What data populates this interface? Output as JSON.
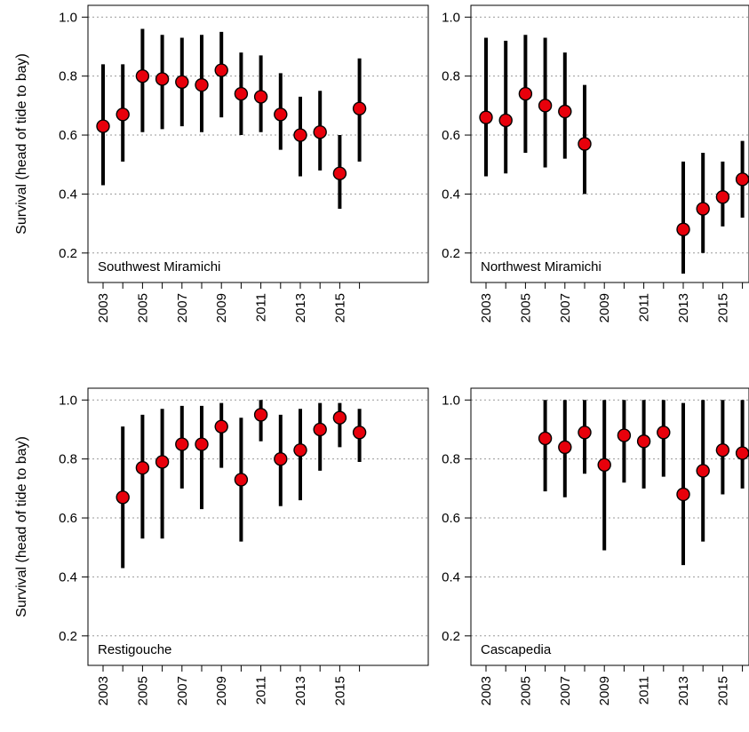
{
  "chart_data": [
    {
      "type": "scatter",
      "subtype": "point-with-error-bars",
      "panel_label": "Southwest Miramichi",
      "ylabel": "Survival (head of tide to bay)",
      "xlabel": "",
      "ylim": [
        0.1,
        1.04
      ],
      "xlim": [
        2002.6,
        2016.4
      ],
      "yticks": [
        "0.2",
        "0.4",
        "0.6",
        "0.8",
        "1.0"
      ],
      "xticks": [
        "2003",
        "2005",
        "2007",
        "2009",
        "2011",
        "2013",
        "2015"
      ],
      "grid": "horizontal dotted",
      "points": [
        {
          "x": 2003,
          "y": 0.63,
          "lo": 0.43,
          "hi": 0.84
        },
        {
          "x": 2004,
          "y": 0.67,
          "lo": 0.51,
          "hi": 0.84
        },
        {
          "x": 2005,
          "y": 0.8,
          "lo": 0.61,
          "hi": 0.96
        },
        {
          "x": 2006,
          "y": 0.79,
          "lo": 0.62,
          "hi": 0.94
        },
        {
          "x": 2007,
          "y": 0.78,
          "lo": 0.63,
          "hi": 0.93
        },
        {
          "x": 2008,
          "y": 0.77,
          "lo": 0.61,
          "hi": 0.94
        },
        {
          "x": 2009,
          "y": 0.82,
          "lo": 0.66,
          "hi": 0.95
        },
        {
          "x": 2010,
          "y": 0.74,
          "lo": 0.6,
          "hi": 0.88
        },
        {
          "x": 2011,
          "y": 0.73,
          "lo": 0.61,
          "hi": 0.87
        },
        {
          "x": 2012,
          "y": 0.67,
          "lo": 0.55,
          "hi": 0.81
        },
        {
          "x": 2013,
          "y": 0.6,
          "lo": 0.46,
          "hi": 0.73
        },
        {
          "x": 2014,
          "y": 0.61,
          "lo": 0.48,
          "hi": 0.75
        },
        {
          "x": 2015,
          "y": 0.47,
          "lo": 0.35,
          "hi": 0.6
        },
        {
          "x": 2016,
          "y": 0.69,
          "lo": 0.51,
          "hi": 0.86
        }
      ]
    },
    {
      "type": "scatter",
      "subtype": "point-with-error-bars",
      "panel_label": "Northwest Miramichi",
      "ylabel": "",
      "xlabel": "",
      "ylim": [
        0.1,
        1.04
      ],
      "xlim": [
        2002.6,
        2016.4
      ],
      "yticks": [
        "0.2",
        "0.4",
        "0.6",
        "0.8",
        "1.0"
      ],
      "xticks": [
        "2003",
        "2005",
        "2007",
        "2009",
        "2011",
        "2013",
        "2015"
      ],
      "grid": "horizontal dotted",
      "points": [
        {
          "x": 2003,
          "y": 0.66,
          "lo": 0.46,
          "hi": 0.93
        },
        {
          "x": 2004,
          "y": 0.65,
          "lo": 0.47,
          "hi": 0.92
        },
        {
          "x": 2005,
          "y": 0.74,
          "lo": 0.54,
          "hi": 0.94
        },
        {
          "x": 2006,
          "y": 0.7,
          "lo": 0.49,
          "hi": 0.93
        },
        {
          "x": 2007,
          "y": 0.68,
          "lo": 0.52,
          "hi": 0.88
        },
        {
          "x": 2008,
          "y": 0.57,
          "lo": 0.4,
          "hi": 0.77
        },
        {
          "x": 2013,
          "y": 0.28,
          "lo": 0.13,
          "hi": 0.51
        },
        {
          "x": 2014,
          "y": 0.35,
          "lo": 0.2,
          "hi": 0.54
        },
        {
          "x": 2015,
          "y": 0.39,
          "lo": 0.29,
          "hi": 0.51
        },
        {
          "x": 2016,
          "y": 0.45,
          "lo": 0.32,
          "hi": 0.58
        }
      ]
    },
    {
      "type": "scatter",
      "subtype": "point-with-error-bars",
      "panel_label": "Restigouche",
      "ylabel": "Survival (head of tide to bay)",
      "xlabel": "",
      "ylim": [
        0.1,
        1.04
      ],
      "xlim": [
        2002.6,
        2016.4
      ],
      "yticks": [
        "0.2",
        "0.4",
        "0.6",
        "0.8",
        "1.0"
      ],
      "xticks": [
        "2003",
        "2005",
        "2007",
        "2009",
        "2011",
        "2013",
        "2015"
      ],
      "grid": "horizontal dotted",
      "points": [
        {
          "x": 2004,
          "y": 0.67,
          "lo": 0.43,
          "hi": 0.91
        },
        {
          "x": 2005,
          "y": 0.77,
          "lo": 0.53,
          "hi": 0.95
        },
        {
          "x": 2006,
          "y": 0.79,
          "lo": 0.53,
          "hi": 0.97
        },
        {
          "x": 2007,
          "y": 0.85,
          "lo": 0.7,
          "hi": 0.98
        },
        {
          "x": 2008,
          "y": 0.85,
          "lo": 0.63,
          "hi": 0.98
        },
        {
          "x": 2009,
          "y": 0.91,
          "lo": 0.77,
          "hi": 0.99
        },
        {
          "x": 2010,
          "y": 0.73,
          "lo": 0.52,
          "hi": 0.94
        },
        {
          "x": 2011,
          "y": 0.95,
          "lo": 0.86,
          "hi": 1.0
        },
        {
          "x": 2012,
          "y": 0.8,
          "lo": 0.64,
          "hi": 0.95
        },
        {
          "x": 2013,
          "y": 0.83,
          "lo": 0.66,
          "hi": 0.97
        },
        {
          "x": 2014,
          "y": 0.9,
          "lo": 0.76,
          "hi": 0.99
        },
        {
          "x": 2015,
          "y": 0.94,
          "lo": 0.84,
          "hi": 0.99
        },
        {
          "x": 2016,
          "y": 0.89,
          "lo": 0.79,
          "hi": 0.97
        }
      ]
    },
    {
      "type": "scatter",
      "subtype": "point-with-error-bars",
      "panel_label": "Cascapedia",
      "ylabel": "",
      "xlabel": "",
      "ylim": [
        0.1,
        1.04
      ],
      "xlim": [
        2002.6,
        2016.4
      ],
      "yticks": [
        "0.2",
        "0.4",
        "0.6",
        "0.8",
        "1.0"
      ],
      "xticks": [
        "2003",
        "2005",
        "2007",
        "2009",
        "2011",
        "2013",
        "2015"
      ],
      "grid": "horizontal dotted",
      "points": [
        {
          "x": 2006,
          "y": 0.87,
          "lo": 0.69,
          "hi": 1.0
        },
        {
          "x": 2007,
          "y": 0.84,
          "lo": 0.67,
          "hi": 1.0
        },
        {
          "x": 2008,
          "y": 0.89,
          "lo": 0.75,
          "hi": 1.0
        },
        {
          "x": 2009,
          "y": 0.78,
          "lo": 0.49,
          "hi": 1.0
        },
        {
          "x": 2010,
          "y": 0.88,
          "lo": 0.72,
          "hi": 1.0
        },
        {
          "x": 2011,
          "y": 0.86,
          "lo": 0.7,
          "hi": 1.0
        },
        {
          "x": 2012,
          "y": 0.89,
          "lo": 0.74,
          "hi": 1.0
        },
        {
          "x": 2013,
          "y": 0.68,
          "lo": 0.44,
          "hi": 0.99
        },
        {
          "x": 2014,
          "y": 0.76,
          "lo": 0.52,
          "hi": 1.0
        },
        {
          "x": 2015,
          "y": 0.83,
          "lo": 0.68,
          "hi": 1.0
        },
        {
          "x": 2016,
          "y": 0.82,
          "lo": 0.7,
          "hi": 1.0
        }
      ]
    }
  ],
  "style": {
    "point_fill": "#e8000b",
    "point_stroke": "#000000",
    "errorbar_color": "#000000",
    "grid_color": "#999999",
    "axis_color": "#000000"
  }
}
